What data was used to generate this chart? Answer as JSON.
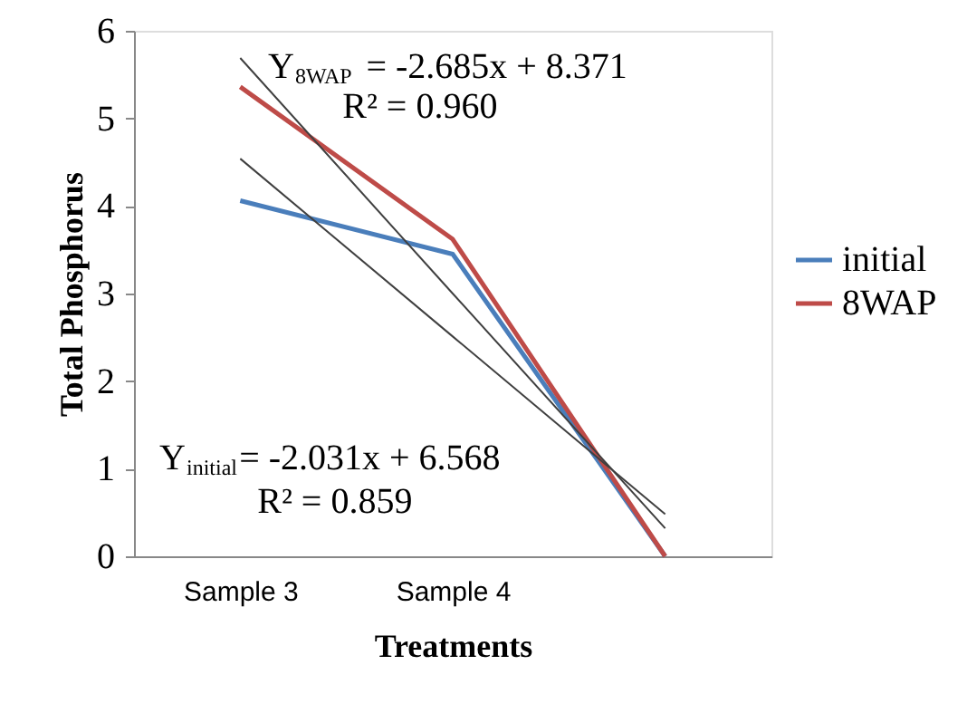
{
  "chart_data": {
    "type": "line",
    "xlabel": "Treatments",
    "ylabel": "Total Phosphorus",
    "categories": [
      "Sample 3",
      "Sample 4",
      null
    ],
    "series": [
      {
        "name": "initial",
        "color": "#4a7ebb",
        "values": [
          4.06,
          3.45,
          0
        ]
      },
      {
        "name": "8WAP",
        "color": "#be4b48",
        "values": [
          5.36,
          3.62,
          0
        ]
      },
      {
        "type": "line",
        "color": "#404040",
        "values": [
          4.54,
          2.51,
          0.48
        ]
      },
      {
        "type": "line",
        "color": "#404040",
        "values": [
          5.69,
          3.0,
          0.32
        ]
      }
    ],
    "ylim": [
      0,
      6
    ],
    "yticks": [
      0,
      1,
      2,
      3,
      4,
      5,
      6
    ],
    "grid": false,
    "legend": "right",
    "marker": "none",
    "line_style": "solid",
    "annotations": [
      "Y$_{8WAP}$ = -2.685x + 8.371",
      "R² = 0.960",
      "Y$_{initial}$= -2.031x + 6.568",
      "R² = 0.859"
    ]
  }
}
